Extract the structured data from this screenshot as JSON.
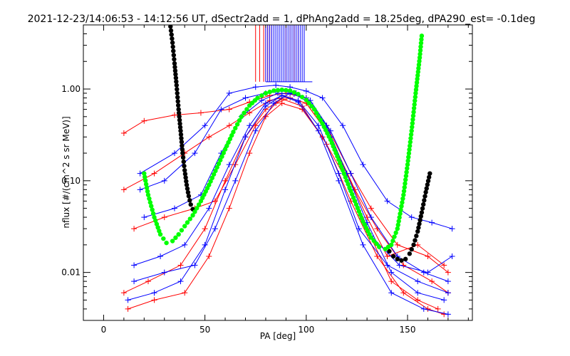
{
  "chart_data": {
    "type": "line",
    "title": "2021-12-23/14:06:53 - 14:12:56 UT, dSectr2add = 1, dPhAng2add = 18.25deg, dPA290_est=  -0.1deg",
    "xlabel": "PA [deg]",
    "ylabel": "nflux [#/(cm^2 s sr MeV)]",
    "x_scale": "linear",
    "y_scale": "log",
    "xlim": [
      -10,
      182
    ],
    "ylim": [
      0.003,
      5.0
    ],
    "x_ticks": [
      0,
      50,
      100,
      150
    ],
    "x_tick_labels": [
      "0",
      "50",
      "100",
      "150"
    ],
    "y_ticks": [
      0.01,
      0.1,
      1.0
    ],
    "y_tick_labels": [
      "0.01",
      "0.10",
      "1.00"
    ],
    "grid": false,
    "legend": "none",
    "colors": {
      "red": "#ff0000",
      "blue": "#0000ff",
      "green": "#00ff00",
      "black": "#000000"
    },
    "series": [
      {
        "color": "#ff0000",
        "style": "lines+plus",
        "x": [
          10,
          20,
          35,
          48,
          62,
          72,
          82,
          90,
          100,
          110,
          122,
          132,
          145,
          160,
          170
        ],
        "y": [
          0.33,
          0.45,
          0.52,
          0.55,
          0.6,
          0.72,
          0.85,
          0.9,
          0.8,
          0.4,
          0.12,
          0.05,
          0.02,
          0.015,
          0.01
        ]
      },
      {
        "color": "#ff0000",
        "style": "lines+plus",
        "x": [
          10,
          25,
          40,
          52,
          62,
          72,
          82,
          90,
          100,
          112,
          124,
          135,
          148,
          162,
          170
        ],
        "y": [
          0.08,
          0.12,
          0.2,
          0.3,
          0.4,
          0.55,
          0.75,
          0.82,
          0.7,
          0.3,
          0.08,
          0.03,
          0.012,
          0.008,
          0.006
        ]
      },
      {
        "color": "#ff0000",
        "style": "lines+plus",
        "x": [
          10,
          22,
          38,
          50,
          60,
          70,
          80,
          88,
          98,
          110,
          122,
          135,
          148,
          160,
          168
        ],
        "y": [
          0.006,
          0.008,
          0.012,
          0.03,
          0.1,
          0.3,
          0.6,
          0.78,
          0.65,
          0.25,
          0.06,
          0.015,
          0.006,
          0.004,
          0.0035
        ]
      },
      {
        "color": "#ff0000",
        "style": "lines+plus",
        "x": [
          12,
          25,
          40,
          52,
          62,
          72,
          80,
          88,
          98,
          108,
          120,
          130,
          142,
          155,
          165
        ],
        "y": [
          0.004,
          0.005,
          0.006,
          0.015,
          0.05,
          0.2,
          0.5,
          0.7,
          0.6,
          0.3,
          0.1,
          0.03,
          0.008,
          0.005,
          0.004
        ]
      },
      {
        "color": "#ff0000",
        "style": "lines+plus",
        "x": [
          15,
          30,
          45,
          55,
          65,
          75,
          85,
          92,
          100,
          110,
          120,
          130,
          140,
          155,
          168
        ],
        "y": [
          0.03,
          0.04,
          0.05,
          0.06,
          0.15,
          0.4,
          0.7,
          0.8,
          0.7,
          0.35,
          0.12,
          0.04,
          0.015,
          0.02,
          0.012
        ]
      },
      {
        "color": "#0000ff",
        "style": "lines+plus",
        "x": [
          18,
          35,
          50,
          62,
          75,
          85,
          92,
          100,
          108,
          118,
          128,
          140,
          152,
          162,
          172
        ],
        "y": [
          0.12,
          0.2,
          0.4,
          0.9,
          1.05,
          1.1,
          1.05,
          0.95,
          0.8,
          0.4,
          0.15,
          0.06,
          0.04,
          0.035,
          0.03
        ]
      },
      {
        "color": "#0000ff",
        "style": "lines+plus",
        "x": [
          18,
          30,
          45,
          58,
          70,
          80,
          88,
          95,
          102,
          112,
          122,
          132,
          145,
          158,
          170
        ],
        "y": [
          0.08,
          0.1,
          0.2,
          0.6,
          0.8,
          0.9,
          0.95,
          0.9,
          0.75,
          0.35,
          0.12,
          0.04,
          0.015,
          0.01,
          0.008
        ]
      },
      {
        "color": "#0000ff",
        "style": "lines+plus",
        "x": [
          15,
          28,
          40,
          52,
          62,
          72,
          80,
          88,
          96,
          106,
          116,
          126,
          140,
          155,
          170
        ],
        "y": [
          0.012,
          0.015,
          0.02,
          0.05,
          0.15,
          0.4,
          0.7,
          0.85,
          0.75,
          0.4,
          0.12,
          0.03,
          0.012,
          0.008,
          0.006
        ]
      },
      {
        "color": "#0000ff",
        "style": "lines+plus",
        "x": [
          12,
          25,
          38,
          50,
          60,
          70,
          80,
          88,
          96,
          106,
          116,
          128,
          142,
          158,
          170
        ],
        "y": [
          0.005,
          0.006,
          0.008,
          0.02,
          0.08,
          0.3,
          0.65,
          0.85,
          0.72,
          0.35,
          0.1,
          0.02,
          0.006,
          0.004,
          0.0035
        ]
      },
      {
        "color": "#0000ff",
        "style": "lines+plus",
        "x": [
          20,
          35,
          48,
          58,
          68,
          78,
          86,
          94,
          102,
          112,
          122,
          132,
          146,
          160,
          172
        ],
        "y": [
          0.04,
          0.05,
          0.07,
          0.2,
          0.5,
          0.75,
          0.9,
          0.88,
          0.7,
          0.3,
          0.08,
          0.025,
          0.012,
          0.01,
          0.015
        ]
      },
      {
        "color": "#0000ff",
        "style": "lines+plus",
        "x": [
          15,
          30,
          45,
          55,
          65,
          75,
          84,
          92,
          100,
          110,
          120,
          130,
          142,
          155,
          168
        ],
        "y": [
          0.008,
          0.01,
          0.012,
          0.03,
          0.1,
          0.35,
          0.7,
          0.9,
          0.8,
          0.4,
          0.12,
          0.035,
          0.01,
          0.006,
          0.005
        ]
      }
    ],
    "fit_green": {
      "color": "#00ff00",
      "x": [
        20,
        22,
        25,
        28,
        31,
        34,
        37,
        40,
        44,
        48,
        52,
        56,
        60,
        64,
        68,
        72,
        76,
        80,
        84,
        88,
        92,
        96,
        100,
        104,
        108,
        112,
        116,
        120,
        124,
        128,
        132,
        136,
        139,
        142,
        145,
        148,
        150,
        152,
        154,
        156,
        157
      ],
      "y": [
        0.12,
        0.07,
        0.04,
        0.026,
        0.021,
        0.022,
        0.026,
        0.032,
        0.042,
        0.06,
        0.09,
        0.14,
        0.22,
        0.34,
        0.5,
        0.66,
        0.8,
        0.9,
        0.96,
        0.98,
        0.96,
        0.88,
        0.76,
        0.6,
        0.42,
        0.28,
        0.17,
        0.1,
        0.06,
        0.036,
        0.024,
        0.019,
        0.018,
        0.02,
        0.03,
        0.07,
        0.15,
        0.35,
        0.9,
        2.2,
        3.8
      ]
    },
    "fit_black": {
      "color": "#000000",
      "x": [
        33,
        34,
        35,
        36,
        37,
        38,
        39,
        40,
        41,
        42,
        43,
        44,
        141,
        143,
        145,
        147,
        149,
        151,
        153,
        155,
        157,
        159,
        161
      ],
      "y": [
        4.8,
        3.2,
        1.9,
        1.1,
        0.6,
        0.35,
        0.2,
        0.13,
        0.09,
        0.068,
        0.055,
        0.049,
        0.017,
        0.015,
        0.014,
        0.0135,
        0.014,
        0.016,
        0.02,
        0.028,
        0.045,
        0.075,
        0.12
      ]
    },
    "spikes": {
      "red_x": [
        75,
        77,
        79,
        80,
        81,
        82,
        83,
        90,
        92,
        94,
        96
      ],
      "blue_x": [
        80,
        81,
        82,
        83,
        84,
        85,
        86,
        87,
        88,
        89,
        90,
        91,
        92,
        93,
        94,
        95,
        96,
        97,
        98,
        99
      ],
      "top": 5.0,
      "bottom": 1.2
    }
  }
}
